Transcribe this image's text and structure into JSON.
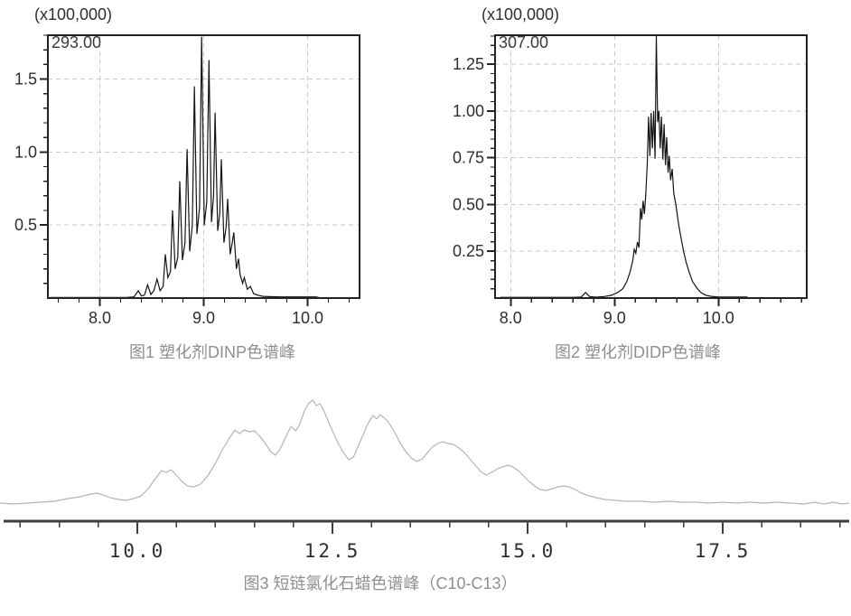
{
  "page": {
    "background": "#ffffff"
  },
  "colors": {
    "trace_dark": "#141414",
    "trace_light": "#b5b5b5",
    "frame": "#232323",
    "grid": "#c9c9c9",
    "tick_label": "#2e2e2e",
    "caption": "#8f8f8f"
  },
  "chart_data": [
    {
      "id": "dinp",
      "type": "line",
      "scale_label": "(x100,000)",
      "annotation": "293.00",
      "caption": "图1 塑化剂DINP色谱峰",
      "xlim": [
        7.5,
        10.5
      ],
      "ylim": [
        0,
        1.8
      ],
      "xticks": [
        {
          "v": 8.0,
          "label": "8.0"
        },
        {
          "v": 9.0,
          "label": "9.0"
        },
        {
          "v": 10.0,
          "label": "10.0"
        }
      ],
      "yticks": [
        {
          "v": 0.5,
          "label": "0.5"
        },
        {
          "v": 1.0,
          "label": "1.0"
        },
        {
          "v": 1.5,
          "label": "1.5"
        }
      ],
      "x_minor_step": 0.2,
      "y_minor_step": 0.1,
      "grid": true,
      "line_color": "#141414",
      "series": [
        {
          "points": [
            [
              7.52,
              0.004
            ],
            [
              8.25,
              0.004
            ],
            [
              8.33,
              0.008
            ],
            [
              8.37,
              0.05
            ],
            [
              8.4,
              0.015
            ],
            [
              8.43,
              0.02
            ],
            [
              8.46,
              0.09
            ],
            [
              8.49,
              0.025
            ],
            [
              8.52,
              0.05
            ],
            [
              8.55,
              0.13
            ],
            [
              8.58,
              0.05
            ],
            [
              8.61,
              0.08
            ],
            [
              8.63,
              0.3
            ],
            [
              8.655,
              0.14
            ],
            [
              8.68,
              0.18
            ],
            [
              8.7,
              0.6
            ],
            [
              8.725,
              0.2
            ],
            [
              8.75,
              0.28
            ],
            [
              8.77,
              0.8
            ],
            [
              8.795,
              0.26
            ],
            [
              8.82,
              0.38
            ],
            [
              8.84,
              1.02
            ],
            [
              8.865,
              0.32
            ],
            [
              8.89,
              0.5
            ],
            [
              8.91,
              1.45
            ],
            [
              8.935,
              0.44
            ],
            [
              8.96,
              0.62
            ],
            [
              8.98,
              1.79
            ],
            [
              9.005,
              0.5
            ],
            [
              9.03,
              0.66
            ],
            [
              9.05,
              1.63
            ],
            [
              9.075,
              0.52
            ],
            [
              9.095,
              0.7
            ],
            [
              9.11,
              1.27
            ],
            [
              9.135,
              0.46
            ],
            [
              9.155,
              0.58
            ],
            [
              9.17,
              0.95
            ],
            [
              9.195,
              0.38
            ],
            [
              9.215,
              0.48
            ],
            [
              9.23,
              0.68
            ],
            [
              9.255,
              0.3
            ],
            [
              9.275,
              0.38
            ],
            [
              9.29,
              0.45
            ],
            [
              9.315,
              0.2
            ],
            [
              9.335,
              0.27
            ],
            [
              9.35,
              0.16
            ],
            [
              9.375,
              0.1
            ],
            [
              9.39,
              0.14
            ],
            [
              9.42,
              0.06
            ],
            [
              9.45,
              0.08
            ],
            [
              9.48,
              0.03
            ],
            [
              9.52,
              0.02
            ],
            [
              9.57,
              0.012
            ],
            [
              9.63,
              0.01
            ],
            [
              9.75,
              0.008
            ],
            [
              10.08,
              0.008
            ],
            [
              10.12,
              0.002
            ]
          ]
        }
      ]
    },
    {
      "id": "didp",
      "type": "line",
      "scale_label": "(x100,000)",
      "annotation": "307.00",
      "caption": "图2 塑化剂DIDP色谱峰",
      "xlim": [
        7.85,
        10.85
      ],
      "ylim": [
        0,
        1.405
      ],
      "xticks": [
        {
          "v": 8.0,
          "label": "8.0"
        },
        {
          "v": 9.0,
          "label": "9.0"
        },
        {
          "v": 10.0,
          "label": "10.0"
        }
      ],
      "yticks": [
        {
          "v": 0.25,
          "label": "0.25"
        },
        {
          "v": 0.5,
          "label": "0.50"
        },
        {
          "v": 0.75,
          "label": "0.75"
        },
        {
          "v": 1.0,
          "label": "1.00"
        },
        {
          "v": 1.25,
          "label": "1.25"
        }
      ],
      "x_minor_step": 0.2,
      "y_minor_step": 0.05,
      "grid": true,
      "line_color": "#141414",
      "series": [
        {
          "points": [
            [
              7.9,
              0.004
            ],
            [
              8.6,
              0.004
            ],
            [
              8.68,
              0.006
            ],
            [
              8.72,
              0.03
            ],
            [
              8.76,
              0.008
            ],
            [
              8.82,
              0.005
            ],
            [
              8.9,
              0.008
            ],
            [
              8.97,
              0.015
            ],
            [
              9.03,
              0.03
            ],
            [
              9.08,
              0.05
            ],
            [
              9.12,
              0.09
            ],
            [
              9.15,
              0.14
            ],
            [
              9.175,
              0.2
            ],
            [
              9.19,
              0.26
            ],
            [
              9.205,
              0.24
            ],
            [
              9.22,
              0.3
            ],
            [
              9.235,
              0.27
            ],
            [
              9.25,
              0.48
            ],
            [
              9.262,
              0.42
            ],
            [
              9.275,
              0.52
            ],
            [
              9.287,
              0.45
            ],
            [
              9.3,
              0.55
            ],
            [
              9.315,
              0.72
            ],
            [
              9.327,
              0.97
            ],
            [
              9.34,
              0.76
            ],
            [
              9.352,
              0.99
            ],
            [
              9.365,
              0.8
            ],
            [
              9.377,
              1.0
            ],
            [
              9.39,
              0.745
            ],
            [
              9.402,
              1.4
            ],
            [
              9.415,
              0.94
            ],
            [
              9.427,
              1.0
            ],
            [
              9.44,
              0.8
            ],
            [
              9.452,
              0.97
            ],
            [
              9.465,
              0.74
            ],
            [
              9.477,
              0.93
            ],
            [
              9.49,
              0.71
            ],
            [
              9.502,
              0.86
            ],
            [
              9.515,
              0.67
            ],
            [
              9.527,
              0.76
            ],
            [
              9.54,
              0.63
            ],
            [
              9.555,
              0.69
            ],
            [
              9.57,
              0.56
            ],
            [
              9.59,
              0.5
            ],
            [
              9.615,
              0.4
            ],
            [
              9.64,
              0.32
            ],
            [
              9.665,
              0.25
            ],
            [
              9.69,
              0.19
            ],
            [
              9.72,
              0.135
            ],
            [
              9.75,
              0.09
            ],
            [
              9.79,
              0.055
            ],
            [
              9.83,
              0.03
            ],
            [
              9.88,
              0.015
            ],
            [
              9.93,
              0.009
            ],
            [
              10.0,
              0.006
            ],
            [
              10.28,
              0.006
            ]
          ]
        }
      ]
    },
    {
      "id": "sccp",
      "type": "line",
      "caption": "图3 短链氯化石蜡色谱峰（C10-C13）",
      "xlim": [
        8.24,
        19.12
      ],
      "ylim": [
        0,
        1.3
      ],
      "xticks": [
        {
          "v": 10.0,
          "label": "10.0"
        },
        {
          "v": 12.5,
          "label": "12.5"
        },
        {
          "v": 15.0,
          "label": "15.0"
        },
        {
          "v": 17.5,
          "label": "17.5"
        }
      ],
      "yticks": [],
      "x_minor_step": 0.5,
      "grid": false,
      "line_color": "#b5b5b5",
      "series": [
        {
          "points": [
            [
              8.24,
              0.026
            ],
            [
              8.41,
              0.017
            ],
            [
              8.59,
              0.026
            ],
            [
              8.76,
              0.034
            ],
            [
              8.94,
              0.043
            ],
            [
              9.11,
              0.068
            ],
            [
              9.26,
              0.085
            ],
            [
              9.4,
              0.111
            ],
            [
              9.48,
              0.12
            ],
            [
              9.56,
              0.103
            ],
            [
              9.65,
              0.077
            ],
            [
              9.77,
              0.06
            ],
            [
              9.86,
              0.051
            ],
            [
              9.95,
              0.068
            ],
            [
              10.05,
              0.094
            ],
            [
              10.14,
              0.162
            ],
            [
              10.23,
              0.256
            ],
            [
              10.31,
              0.333
            ],
            [
              10.37,
              0.316
            ],
            [
              10.43,
              0.342
            ],
            [
              10.49,
              0.299
            ],
            [
              10.56,
              0.239
            ],
            [
              10.64,
              0.188
            ],
            [
              10.72,
              0.179
            ],
            [
              10.81,
              0.205
            ],
            [
              10.9,
              0.282
            ],
            [
              11.0,
              0.402
            ],
            [
              11.09,
              0.53
            ],
            [
              11.18,
              0.641
            ],
            [
              11.25,
              0.718
            ],
            [
              11.31,
              0.684
            ],
            [
              11.37,
              0.718
            ],
            [
              11.44,
              0.701
            ],
            [
              11.5,
              0.709
            ],
            [
              11.57,
              0.658
            ],
            [
              11.64,
              0.59
            ],
            [
              11.71,
              0.513
            ],
            [
              11.77,
              0.479
            ],
            [
              11.83,
              0.538
            ],
            [
              11.9,
              0.65
            ],
            [
              11.97,
              0.752
            ],
            [
              12.03,
              0.709
            ],
            [
              12.08,
              0.769
            ],
            [
              12.14,
              0.897
            ],
            [
              12.2,
              0.974
            ],
            [
              12.25,
              1.0
            ],
            [
              12.29,
              0.949
            ],
            [
              12.34,
              0.966
            ],
            [
              12.38,
              0.915
            ],
            [
              12.44,
              0.812
            ],
            [
              12.5,
              0.709
            ],
            [
              12.57,
              0.598
            ],
            [
              12.64,
              0.504
            ],
            [
              12.71,
              0.436
            ],
            [
              12.77,
              0.462
            ],
            [
              12.82,
              0.547
            ],
            [
              12.89,
              0.667
            ],
            [
              12.96,
              0.786
            ],
            [
              13.02,
              0.855
            ],
            [
              13.07,
              0.821
            ],
            [
              13.11,
              0.863
            ],
            [
              13.17,
              0.829
            ],
            [
              13.23,
              0.778
            ],
            [
              13.3,
              0.692
            ],
            [
              13.37,
              0.59
            ],
            [
              13.44,
              0.513
            ],
            [
              13.51,
              0.453
            ],
            [
              13.58,
              0.419
            ],
            [
              13.65,
              0.444
            ],
            [
              13.71,
              0.496
            ],
            [
              13.78,
              0.556
            ],
            [
              13.85,
              0.59
            ],
            [
              13.91,
              0.607
            ],
            [
              13.98,
              0.59
            ],
            [
              14.05,
              0.581
            ],
            [
              14.12,
              0.547
            ],
            [
              14.19,
              0.504
            ],
            [
              14.26,
              0.444
            ],
            [
              14.33,
              0.385
            ],
            [
              14.4,
              0.325
            ],
            [
              14.47,
              0.291
            ],
            [
              14.54,
              0.316
            ],
            [
              14.61,
              0.35
            ],
            [
              14.68,
              0.368
            ],
            [
              14.75,
              0.385
            ],
            [
              14.81,
              0.368
            ],
            [
              14.88,
              0.333
            ],
            [
              14.95,
              0.282
            ],
            [
              15.02,
              0.231
            ],
            [
              15.09,
              0.188
            ],
            [
              15.16,
              0.154
            ],
            [
              15.24,
              0.145
            ],
            [
              15.32,
              0.162
            ],
            [
              15.39,
              0.179
            ],
            [
              15.46,
              0.188
            ],
            [
              15.53,
              0.179
            ],
            [
              15.61,
              0.154
            ],
            [
              15.69,
              0.12
            ],
            [
              15.79,
              0.094
            ],
            [
              15.88,
              0.077
            ],
            [
              15.99,
              0.06
            ],
            [
              16.13,
              0.051
            ],
            [
              16.28,
              0.043
            ],
            [
              16.46,
              0.043
            ],
            [
              16.63,
              0.034
            ],
            [
              16.81,
              0.043
            ],
            [
              16.98,
              0.034
            ],
            [
              17.15,
              0.034
            ],
            [
              17.33,
              0.026
            ],
            [
              17.5,
              0.034
            ],
            [
              17.67,
              0.026
            ],
            [
              17.85,
              0.034
            ],
            [
              18.02,
              0.026
            ],
            [
              18.19,
              0.034
            ],
            [
              18.37,
              0.026
            ],
            [
              18.54,
              0.017
            ],
            [
              18.68,
              0.034
            ],
            [
              18.8,
              0.017
            ],
            [
              18.91,
              0.034
            ],
            [
              19.03,
              0.017
            ],
            [
              19.12,
              0.026
            ]
          ]
        }
      ]
    }
  ]
}
